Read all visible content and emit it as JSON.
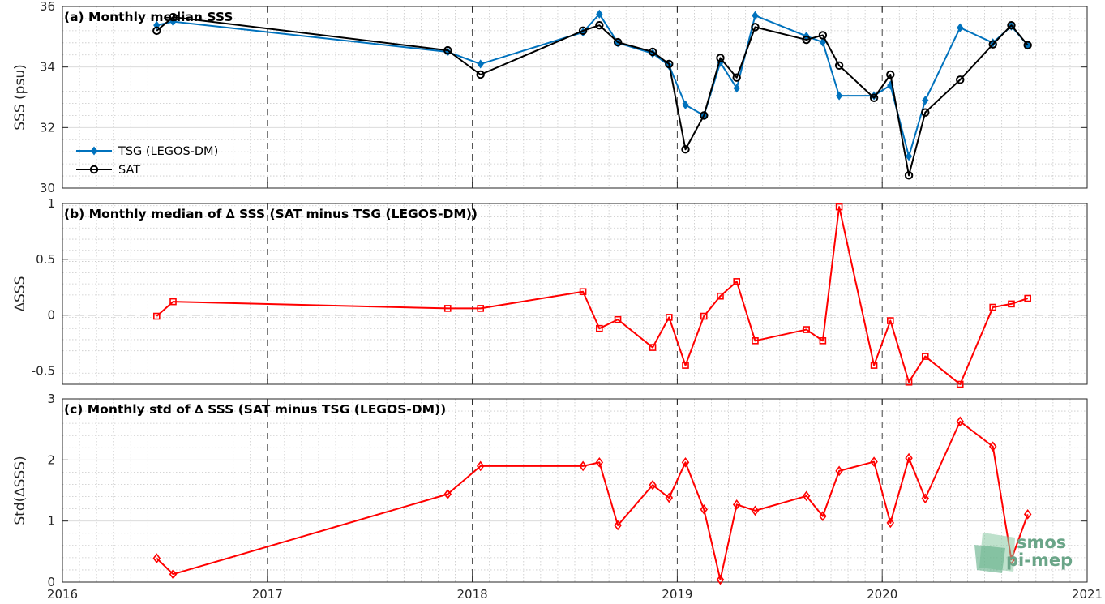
{
  "chart_data": [
    {
      "type": "line",
      "title": "(a) Monthly median SSS",
      "ylabel": "SSS (psu)",
      "xlim": [
        2016,
        2021
      ],
      "ylim": [
        30,
        36
      ],
      "yticks": [
        30,
        32,
        34,
        36
      ],
      "grid": true,
      "legend": "left",
      "series": [
        {
          "name": "TSG (LEGOS-DM)",
          "color": "#0072bd",
          "marker": "diamond",
          "points": [
            [
              2016.46,
              35.38
            ],
            [
              2016.54,
              35.5
            ],
            [
              2017.88,
              34.5
            ],
            [
              2018.04,
              34.1
            ],
            [
              2018.54,
              35.15
            ],
            [
              2018.62,
              35.75
            ],
            [
              2018.71,
              34.8
            ],
            [
              2018.88,
              34.45
            ],
            [
              2018.96,
              34.05
            ],
            [
              2019.04,
              32.75
            ],
            [
              2019.13,
              32.4
            ],
            [
              2019.21,
              34.15
            ],
            [
              2019.29,
              33.3
            ],
            [
              2019.38,
              35.7
            ],
            [
              2019.63,
              35.02
            ],
            [
              2019.71,
              34.82
            ],
            [
              2019.79,
              33.05
            ],
            [
              2019.96,
              33.05
            ],
            [
              2020.04,
              33.4
            ],
            [
              2020.13,
              31.05
            ],
            [
              2020.21,
              32.9
            ],
            [
              2020.38,
              35.3
            ],
            [
              2020.54,
              34.8
            ],
            [
              2020.63,
              35.35
            ],
            [
              2020.71,
              34.72
            ]
          ]
        },
        {
          "name": "SAT",
          "color": "#000000",
          "marker": "circle",
          "points": [
            [
              2016.46,
              35.2
            ],
            [
              2016.54,
              35.65
            ],
            [
              2017.88,
              34.55
            ],
            [
              2018.04,
              33.75
            ],
            [
              2018.54,
              35.2
            ],
            [
              2018.62,
              35.38
            ],
            [
              2018.71,
              34.82
            ],
            [
              2018.88,
              34.5
            ],
            [
              2018.96,
              34.1
            ],
            [
              2019.04,
              31.28
            ],
            [
              2019.13,
              32.4
            ],
            [
              2019.21,
              34.3
            ],
            [
              2019.29,
              33.65
            ],
            [
              2019.38,
              35.32
            ],
            [
              2019.63,
              34.9
            ],
            [
              2019.71,
              35.05
            ],
            [
              2019.79,
              34.05
            ],
            [
              2019.96,
              32.98
            ],
            [
              2020.04,
              33.75
            ],
            [
              2020.13,
              30.42
            ],
            [
              2020.21,
              32.5
            ],
            [
              2020.38,
              33.58
            ],
            [
              2020.54,
              34.75
            ],
            [
              2020.63,
              35.38
            ],
            [
              2020.71,
              34.72
            ]
          ]
        }
      ]
    },
    {
      "type": "line",
      "title": "(b) Monthly median of ∆ SSS (SAT minus TSG (LEGOS-DM))",
      "ylabel": "∆SSS",
      "xlim": [
        2016,
        2021
      ],
      "ylim": [
        -0.62,
        1.0
      ],
      "yticks": [
        -0.5,
        0,
        0.5,
        1
      ],
      "ytick_labels": [
        "-0.5",
        "0",
        "0.5",
        "1"
      ],
      "zero_line": true,
      "grid": true,
      "series": [
        {
          "name": "",
          "color": "#ff0000",
          "marker": "square",
          "points": [
            [
              2016.46,
              -0.01
            ],
            [
              2016.54,
              0.12
            ],
            [
              2017.88,
              0.06
            ],
            [
              2018.04,
              0.06
            ],
            [
              2018.54,
              0.21
            ],
            [
              2018.62,
              -0.12
            ],
            [
              2018.71,
              -0.04
            ],
            [
              2018.88,
              -0.29
            ],
            [
              2018.96,
              -0.02
            ],
            [
              2019.04,
              -0.45
            ],
            [
              2019.13,
              -0.01
            ],
            [
              2019.21,
              0.17
            ],
            [
              2019.29,
              0.3
            ],
            [
              2019.38,
              -0.23
            ],
            [
              2019.63,
              -0.13
            ],
            [
              2019.71,
              -0.23
            ],
            [
              2019.79,
              0.97
            ],
            [
              2019.96,
              -0.45
            ],
            [
              2020.04,
              -0.05
            ],
            [
              2020.13,
              -0.6
            ],
            [
              2020.21,
              -0.37
            ],
            [
              2020.38,
              -0.62
            ],
            [
              2020.54,
              0.07
            ],
            [
              2020.63,
              0.1
            ],
            [
              2020.71,
              0.15
            ]
          ]
        }
      ]
    },
    {
      "type": "line",
      "title": "(c) Monthly std of ∆ SSS (SAT minus TSG (LEGOS-DM))",
      "ylabel": "Std(∆SSS)",
      "xlabel": "",
      "xlim": [
        2016,
        2021
      ],
      "xticks": [
        2016,
        2017,
        2018,
        2019,
        2020,
        2021
      ],
      "ylim": [
        0,
        3
      ],
      "yticks": [
        0,
        1,
        2,
        3
      ],
      "grid": true,
      "series": [
        {
          "name": "",
          "color": "#ff0000",
          "marker": "diamond",
          "points": [
            [
              2016.46,
              0.39
            ],
            [
              2016.54,
              0.13
            ],
            [
              2017.88,
              1.44
            ],
            [
              2018.04,
              1.9
            ],
            [
              2018.54,
              1.9
            ],
            [
              2018.62,
              1.96
            ],
            [
              2018.71,
              0.93
            ],
            [
              2018.88,
              1.59
            ],
            [
              2018.96,
              1.38
            ],
            [
              2019.04,
              1.96
            ],
            [
              2019.13,
              1.19
            ],
            [
              2019.21,
              0.04
            ],
            [
              2019.29,
              1.27
            ],
            [
              2019.38,
              1.17
            ],
            [
              2019.63,
              1.41
            ],
            [
              2019.71,
              1.08
            ],
            [
              2019.79,
              1.82
            ],
            [
              2019.96,
              1.97
            ],
            [
              2020.04,
              0.97
            ],
            [
              2020.13,
              2.03
            ],
            [
              2020.21,
              1.37
            ],
            [
              2020.38,
              2.63
            ],
            [
              2020.54,
              2.22
            ],
            [
              2020.63,
              0.37
            ],
            [
              2020.71,
              1.11
            ]
          ]
        }
      ]
    }
  ],
  "logo": {
    "line1": "smos",
    "line2": "pi-mep"
  }
}
